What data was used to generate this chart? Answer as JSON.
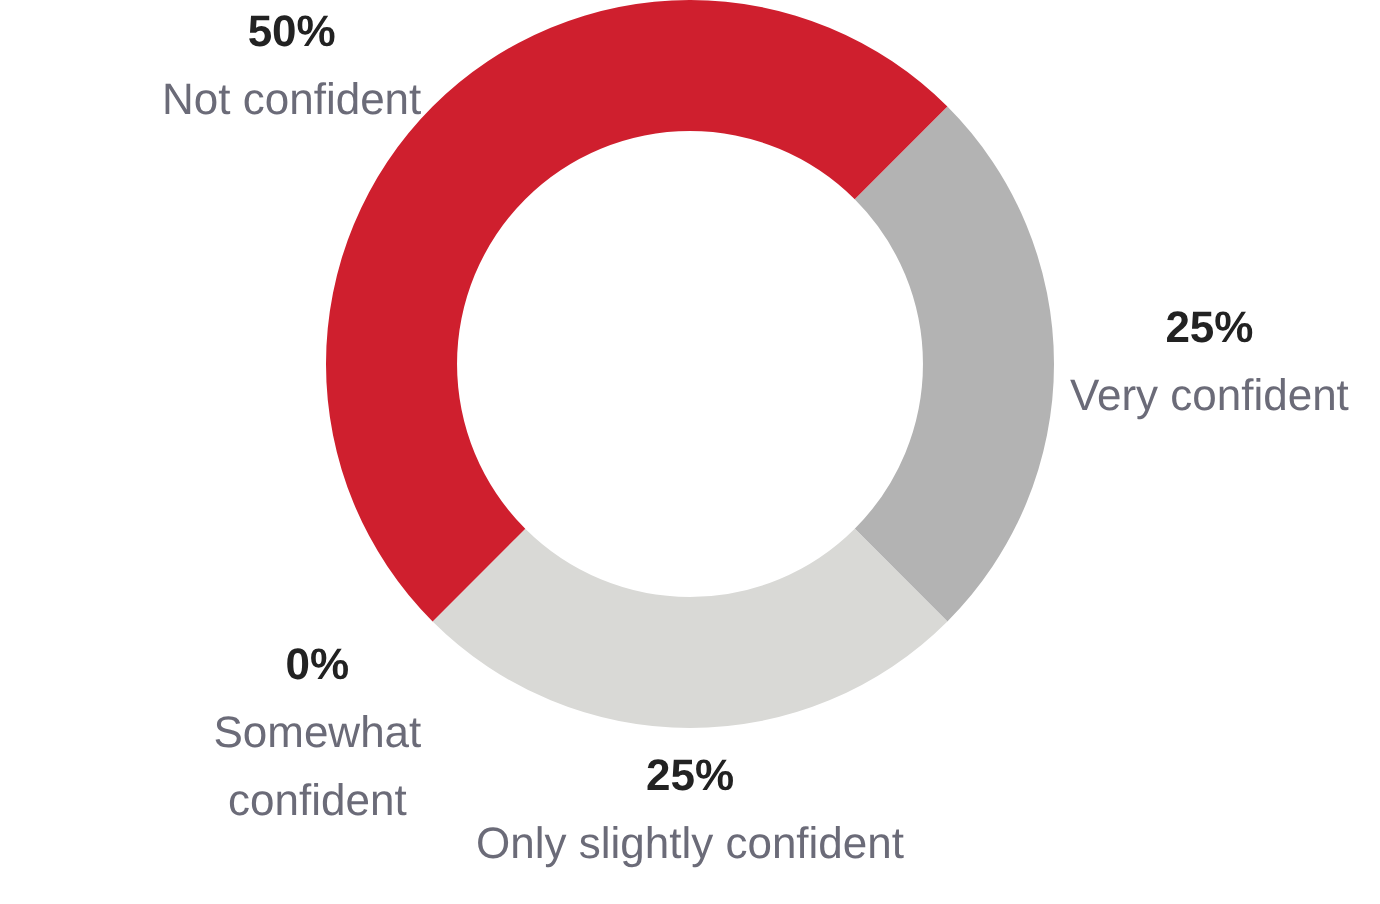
{
  "chart_data": {
    "type": "donut",
    "categories": [
      "Very confident",
      "Only slightly confident",
      "Somewhat confident",
      "Not confident"
    ],
    "values": [
      25,
      25,
      0,
      50
    ],
    "colors": [
      "#b3b3b3",
      "#d9d9d6",
      "#d9d9d6",
      "#cf1f2e"
    ],
    "value_labels": [
      "25%",
      "25%",
      "0%",
      "50%"
    ],
    "legend": false
  }
}
